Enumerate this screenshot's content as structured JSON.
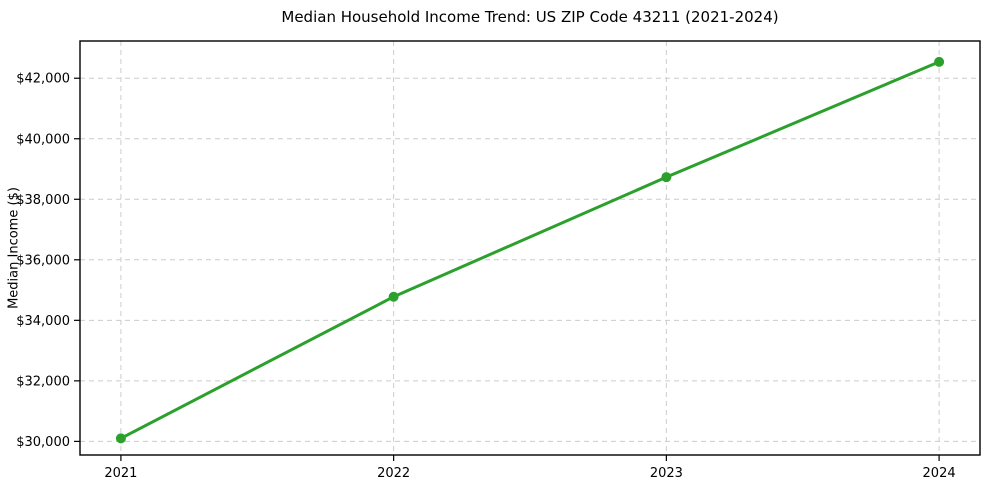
{
  "figure": {
    "background": "#ffffff"
  },
  "chart_data": {
    "type": "line",
    "title": "Median Household Income Trend: US ZIP Code 43211 (2021-2024)",
    "xlabel": "",
    "ylabel": "Median Income ($)",
    "x": [
      2021,
      2022,
      2023,
      2024
    ],
    "values": [
      30100,
      34780,
      38730,
      42540
    ],
    "line_color": "#2ca02c",
    "marker": "circle",
    "marker_color": "#2ca02c",
    "xticks": [
      {
        "value": 2021,
        "label": "2021"
      },
      {
        "value": 2022,
        "label": "2022"
      },
      {
        "value": 2023,
        "label": "2023"
      },
      {
        "value": 2024,
        "label": "2024"
      }
    ],
    "yticks": [
      {
        "value": 30000,
        "label": "$30,000"
      },
      {
        "value": 32000,
        "label": "$32,000"
      },
      {
        "value": 34000,
        "label": "$34,000"
      },
      {
        "value": 36000,
        "label": "$36,000"
      },
      {
        "value": 38000,
        "label": "$38,000"
      },
      {
        "value": 40000,
        "label": "$40,000"
      },
      {
        "value": 42000,
        "label": "$42,000"
      }
    ],
    "xlim": [
      2020.85,
      2024.15
    ],
    "ylim": [
      29550,
      43230
    ],
    "grid": {
      "on": true,
      "linestyle": "dashed",
      "color": "#cccccc"
    },
    "legend": "none",
    "axis_color": "#000000",
    "text_color": "#000000"
  }
}
